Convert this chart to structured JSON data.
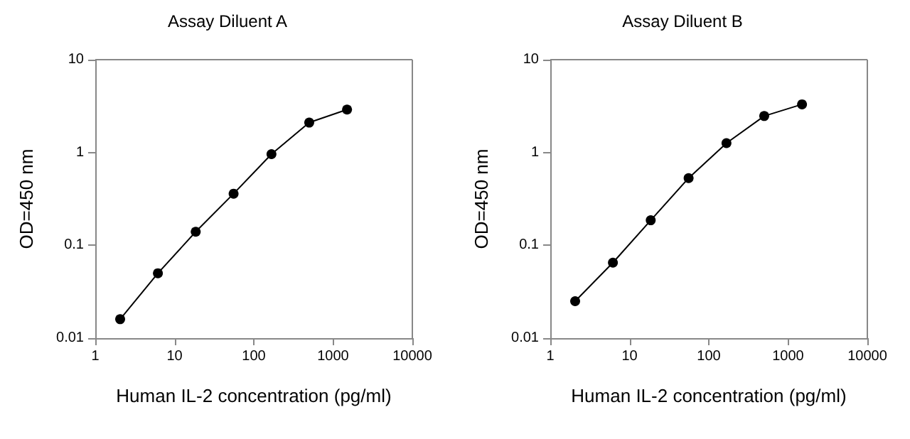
{
  "chart_data": [
    {
      "type": "line",
      "title": "Assay Diluent A",
      "xlabel": "Human IL-2 concentration (pg/ml)",
      "ylabel": "OD=450 nm",
      "log": "xy",
      "xlim": [
        1,
        10000
      ],
      "xticks": [
        1,
        10,
        100,
        1000,
        10000
      ],
      "ylim": [
        0.01,
        10
      ],
      "yticks": [
        0.01,
        0.1,
        1,
        10
      ],
      "grid": false,
      "marker": "circle",
      "line_style": "solid",
      "x": [
        2.06,
        6.17,
        18.5,
        55.6,
        167,
        500,
        1500
      ],
      "series": [
        {
          "color": "#000000",
          "values": [
            0.016,
            0.05,
            0.14,
            0.36,
            0.96,
            2.1,
            2.9
          ]
        }
      ]
    },
    {
      "type": "line",
      "title": "Assay Diluent B",
      "xlabel": "Human IL-2 concentration (pg/ml)",
      "ylabel": "OD=450 nm",
      "log": "xy",
      "xlim": [
        1,
        10000
      ],
      "xticks": [
        1,
        10,
        100,
        1000,
        10000
      ],
      "ylim": [
        0.01,
        10
      ],
      "yticks": [
        0.01,
        0.1,
        1,
        10
      ],
      "grid": false,
      "marker": "circle",
      "line_style": "solid",
      "x": [
        2.06,
        6.17,
        18.5,
        55.6,
        167,
        500,
        1500
      ],
      "series": [
        {
          "color": "#000000",
          "values": [
            0.025,
            0.065,
            0.186,
            0.53,
            1.26,
            2.47,
            3.3
          ]
        }
      ]
    }
  ]
}
